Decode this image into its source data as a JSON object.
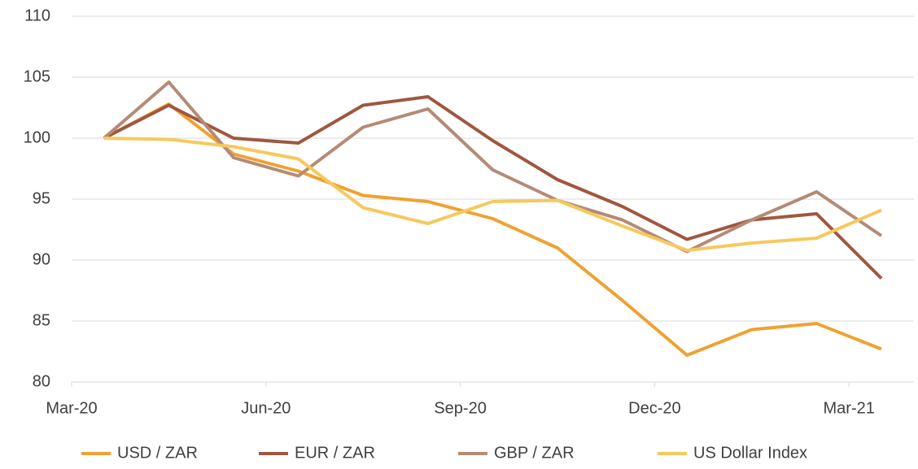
{
  "chart_data": {
    "type": "line",
    "categories": [
      "Mar-20",
      null,
      null,
      "Jun-20",
      null,
      null,
      "Sep-20",
      null,
      null,
      "Dec-20",
      null,
      null,
      "Mar-21"
    ],
    "series": [
      {
        "name": "USD / ZAR",
        "color": "#eea232",
        "values": [
          100,
          102.8,
          98.7,
          97.3,
          95.3,
          94.8,
          93.4,
          91.0,
          86.7,
          82.2,
          84.3,
          84.8,
          82.7
        ]
      },
      {
        "name": "EUR / ZAR",
        "color": "#a0573e",
        "values": [
          100,
          102.7,
          100.0,
          99.6,
          102.7,
          103.4,
          99.8,
          96.6,
          94.4,
          91.7,
          93.3,
          93.8,
          88.5
        ]
      },
      {
        "name": "GBP / ZAR",
        "color": "#b58a76",
        "values": [
          100,
          104.6,
          98.4,
          96.9,
          100.9,
          102.4,
          97.4,
          94.9,
          93.3,
          90.7,
          93.3,
          95.6,
          92.0
        ]
      },
      {
        "name": "US Dollar Index",
        "color": "#f5c95c",
        "values": [
          100,
          99.9,
          99.3,
          98.3,
          94.3,
          93.0,
          94.8,
          94.9,
          92.8,
          90.8,
          91.4,
          91.8,
          94.1
        ]
      }
    ],
    "ylim": [
      80,
      110
    ],
    "yticks": [
      80,
      85,
      90,
      95,
      100,
      105,
      110
    ],
    "grid": true,
    "legend": "bottom"
  }
}
